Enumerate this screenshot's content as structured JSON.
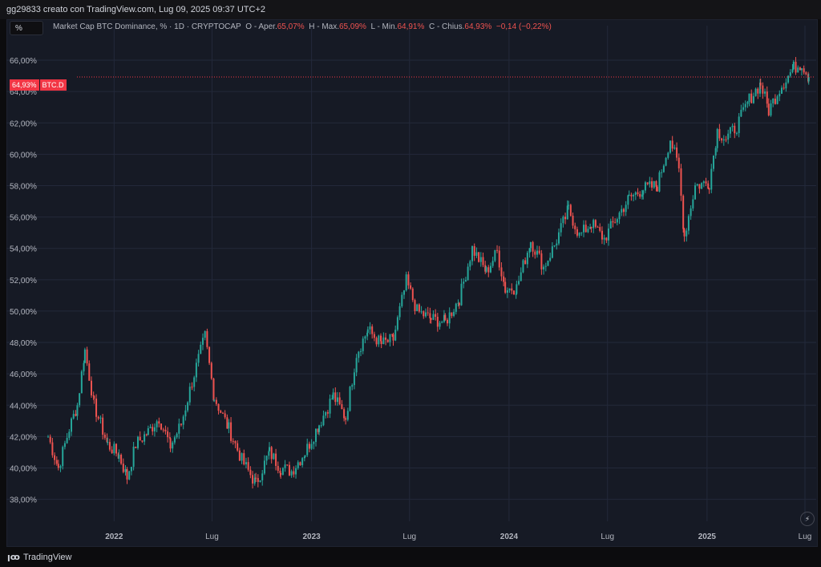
{
  "header": {
    "creator_text": "gg29833 creato con TradingView.com, Lug 09, 2025 09:37 UTC+2"
  },
  "toolbar": {
    "percent_label": "%"
  },
  "legend": {
    "symbol": "Market Cap BTC Dominance, % · 1D · CRYPTOCAP",
    "open_label": "O - Aper.",
    "open_value": "65,07%",
    "high_label": "H - Max.",
    "high_value": "65,09%",
    "low_label": "L - Min.",
    "low_value": "64,91%",
    "close_label": "C - Chius.",
    "close_value": "64,93%",
    "change_value": "−0,14 (−0,22%)"
  },
  "price_tag": {
    "value": "64,93%",
    "symbol": "BTC.D"
  },
  "footer": {
    "brand": "TradingView"
  },
  "colors": {
    "up": "#26a69a",
    "down": "#ef5350",
    "grid": "#23293a",
    "last_price": "#f23645"
  },
  "chart_data": {
    "type": "candlestick",
    "ylim": [
      36.6,
      68.2
    ],
    "y_ticks": [
      38,
      40,
      42,
      44,
      46,
      48,
      50,
      52,
      54,
      56,
      58,
      60,
      62,
      64,
      66
    ],
    "y_tick_labels": [
      "38,00%",
      "40,00%",
      "42,00%",
      "44,00%",
      "46,00%",
      "48,00%",
      "50,00%",
      "52,00%",
      "54,00%",
      "56,00%",
      "58,00%",
      "60,00%",
      "62,00%",
      "64,00%",
      "66,00%"
    ],
    "x_ticks": [
      "2022",
      "Lug",
      "2023",
      "Lug",
      "2024",
      "Lug",
      "2025",
      "Lug"
    ],
    "last_price": 64.93,
    "series_path": [
      [
        "2021-09-01",
        42.0
      ],
      [
        "2021-09-20",
        40.0
      ],
      [
        "2021-10-10",
        42.5
      ],
      [
        "2021-10-25",
        44.0
      ],
      [
        "2021-11-08",
        47.5
      ],
      [
        "2021-11-25",
        44.0
      ],
      [
        "2021-12-20",
        41.5
      ],
      [
        "2022-01-10",
        40.8
      ],
      [
        "2022-01-25",
        39.4
      ],
      [
        "2022-02-10",
        41.5
      ],
      [
        "2022-03-05",
        42.3
      ],
      [
        "2022-03-25",
        43.2
      ],
      [
        "2022-04-15",
        41.4
      ],
      [
        "2022-05-05",
        42.8
      ],
      [
        "2022-05-25",
        45.5
      ],
      [
        "2022-06-18",
        48.4
      ],
      [
        "2022-07-05",
        44.5
      ],
      [
        "2022-08-01",
        42.5
      ],
      [
        "2022-08-25",
        40.5
      ],
      [
        "2022-09-20",
        39.0
      ],
      [
        "2022-10-15",
        41.0
      ],
      [
        "2022-11-05",
        40.0
      ],
      [
        "2022-11-25",
        39.8
      ],
      [
        "2022-12-20",
        41.0
      ],
      [
        "2023-01-15",
        42.8
      ],
      [
        "2023-02-10",
        44.6
      ],
      [
        "2023-03-05",
        43.2
      ],
      [
        "2023-03-25",
        47.3
      ],
      [
        "2023-04-15",
        48.8
      ],
      [
        "2023-05-10",
        47.9
      ],
      [
        "2023-06-01",
        48.2
      ],
      [
        "2023-06-25",
        51.9
      ],
      [
        "2023-07-15",
        50.0
      ],
      [
        "2023-08-10",
        49.5
      ],
      [
        "2023-09-05",
        49.3
      ],
      [
        "2023-10-01",
        50.8
      ],
      [
        "2023-10-25",
        54.0
      ],
      [
        "2023-11-20",
        52.5
      ],
      [
        "2023-12-10",
        53.8
      ],
      [
        "2023-12-25",
        51.4
      ],
      [
        "2024-01-15",
        51.5
      ],
      [
        "2024-02-10",
        54.5
      ],
      [
        "2024-03-05",
        52.8
      ],
      [
        "2024-03-25",
        54.2
      ],
      [
        "2024-04-20",
        56.5
      ],
      [
        "2024-05-10",
        54.8
      ],
      [
        "2024-06-01",
        55.6
      ],
      [
        "2024-06-25",
        54.6
      ],
      [
        "2024-07-15",
        55.8
      ],
      [
        "2024-08-10",
        57.2
      ],
      [
        "2024-09-05",
        57.8
      ],
      [
        "2024-10-01",
        58.0
      ],
      [
        "2024-10-25",
        61.0
      ],
      [
        "2024-11-10",
        59.0
      ],
      [
        "2024-11-20",
        54.8
      ],
      [
        "2024-12-10",
        58.0
      ],
      [
        "2025-01-05",
        58.2
      ],
      [
        "2025-01-20",
        61.5
      ],
      [
        "2025-02-05",
        61.0
      ],
      [
        "2025-02-25",
        61.8
      ],
      [
        "2025-03-20",
        63.5
      ],
      [
        "2025-04-10",
        64.5
      ],
      [
        "2025-04-25",
        62.8
      ],
      [
        "2025-05-15",
        64.2
      ],
      [
        "2025-06-10",
        65.5
      ],
      [
        "2025-06-25",
        65.8
      ],
      [
        "2025-07-08",
        64.93
      ]
    ]
  }
}
